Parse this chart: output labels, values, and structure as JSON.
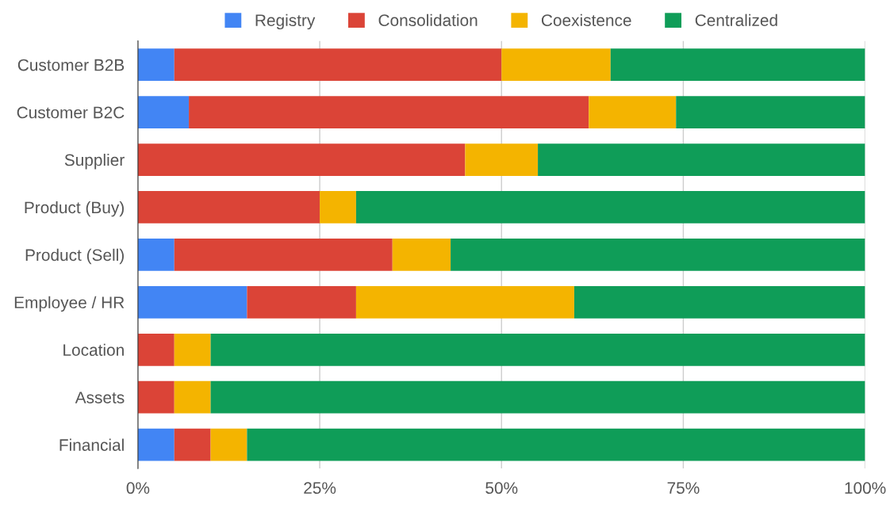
{
  "chart_data": {
    "type": "bar",
    "orientation": "horizontal",
    "stacked": true,
    "categories": [
      "Customer B2B",
      "Customer B2C",
      "Supplier",
      "Product (Buy)",
      "Product (Sell)",
      "Employee / HR",
      "Location",
      "Assets",
      "Financial"
    ],
    "series": [
      {
        "name": "Registry",
        "color": "#4285f4",
        "values": [
          5,
          7,
          0,
          0,
          5,
          15,
          0,
          0,
          5
        ]
      },
      {
        "name": "Consolidation",
        "color": "#db4437",
        "values": [
          45,
          55,
          45,
          25,
          30,
          15,
          5,
          5,
          5
        ]
      },
      {
        "name": "Coexistence",
        "color": "#f4b400",
        "values": [
          15,
          12,
          10,
          5,
          8,
          30,
          5,
          5,
          5
        ]
      },
      {
        "name": "Centralized",
        "color": "#0f9d58",
        "values": [
          35,
          26,
          45,
          70,
          57,
          40,
          90,
          90,
          85
        ]
      }
    ],
    "xlim": [
      0,
      100
    ],
    "xticks": [
      {
        "value": 0,
        "label": "0%"
      },
      {
        "value": 25,
        "label": "25%"
      },
      {
        "value": 50,
        "label": "50%"
      },
      {
        "value": 75,
        "label": "75%"
      },
      {
        "value": 100,
        "label": "100%"
      }
    ],
    "grid": "x",
    "legend": "top"
  }
}
